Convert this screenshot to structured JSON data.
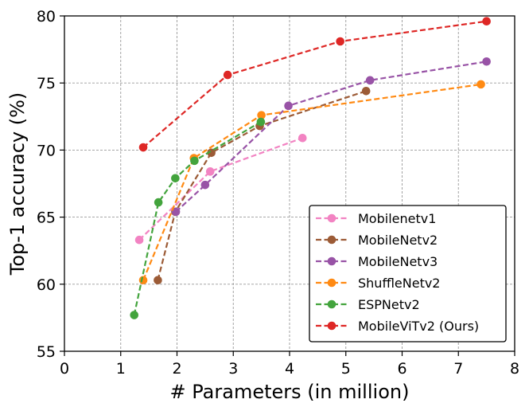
{
  "chart_data": {
    "type": "line",
    "title": "",
    "xlabel": "# Parameters (in million)",
    "ylabel": "Top-1 accuracy (%)",
    "xlim": [
      0,
      8
    ],
    "ylim": [
      55,
      80
    ],
    "xticks": [
      0,
      1,
      2,
      3,
      4,
      5,
      6,
      7,
      8
    ],
    "yticks": [
      55,
      60,
      65,
      70,
      75,
      80
    ],
    "grid": true,
    "legend_position": "lower-right",
    "series": [
      {
        "name": "Mobilenetv1",
        "color": "#f283c2",
        "x": [
          1.33,
          2.59,
          4.23
        ],
        "y": [
          63.3,
          68.4,
          70.9
        ]
      },
      {
        "name": "MobileNetv2",
        "color": "#9c5b36",
        "x": [
          1.66,
          1.97,
          2.61,
          3.47,
          5.36
        ],
        "y": [
          60.3,
          65.4,
          69.8,
          71.8,
          74.4
        ]
      },
      {
        "name": "MobileNetv3",
        "color": "#9853a6",
        "x": [
          1.98,
          2.5,
          3.98,
          5.43,
          7.5
        ],
        "y": [
          65.4,
          67.4,
          73.3,
          75.2,
          76.6
        ]
      },
      {
        "name": "ShuffleNetv2",
        "color": "#ff8a13",
        "x": [
          1.4,
          2.3,
          3.5,
          7.4
        ],
        "y": [
          60.3,
          69.4,
          72.6,
          74.9
        ]
      },
      {
        "name": "ESPNetv2",
        "color": "#43a43d",
        "x": [
          1.24,
          1.67,
          1.97,
          2.31,
          3.49
        ],
        "y": [
          57.7,
          66.1,
          67.9,
          69.2,
          72.1
        ]
      },
      {
        "name": "MobileViTv2 (Ours)",
        "color": "#de2725",
        "x": [
          1.4,
          2.9,
          4.9,
          7.5
        ],
        "y": [
          70.2,
          75.6,
          78.1,
          79.6
        ]
      }
    ]
  }
}
